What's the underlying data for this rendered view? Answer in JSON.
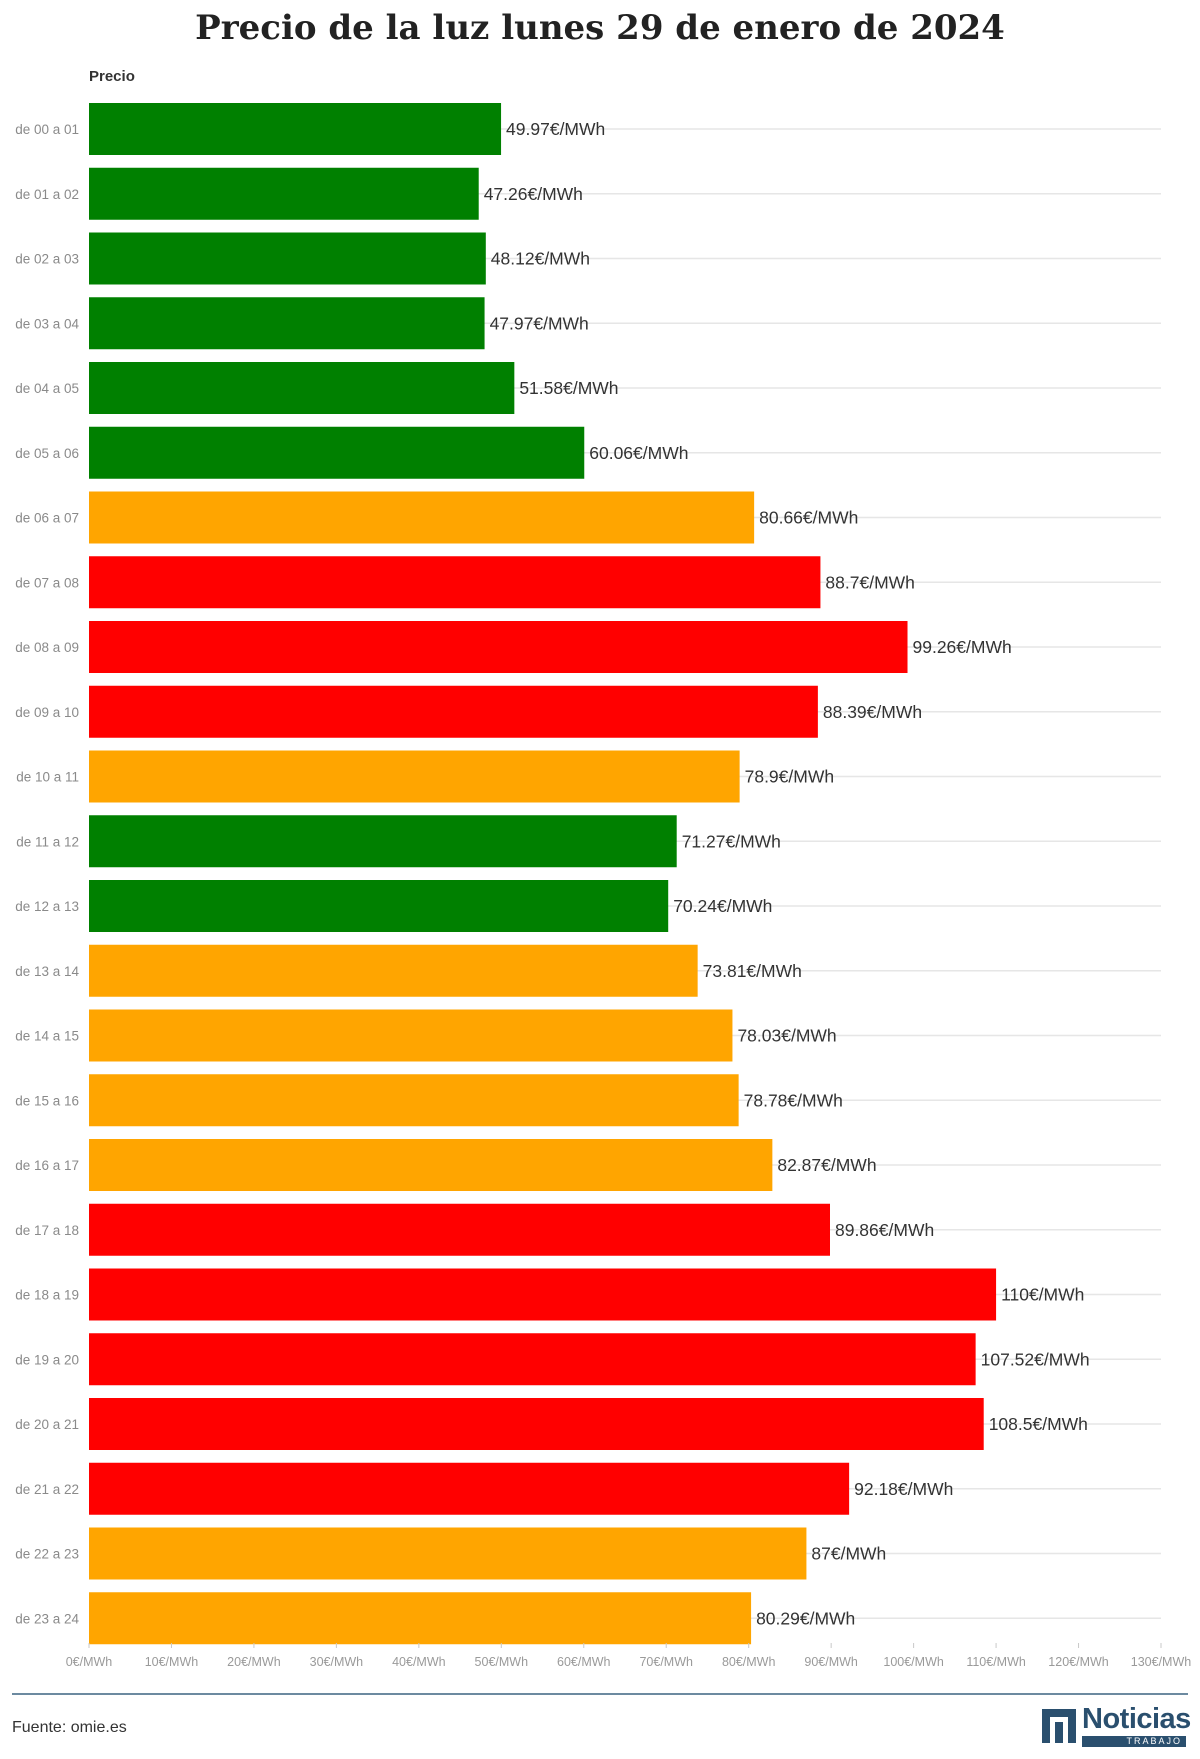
{
  "chart_data": {
    "type": "bar",
    "orientation": "horizontal",
    "title": "Precio de la luz lunes 29 de enero de 2024",
    "series_label": "Precio",
    "categories": [
      "de 00 a 01",
      "de 01 a 02",
      "de 02 a 03",
      "de 03 a 04",
      "de 04 a 05",
      "de 05 a 06",
      "de 06 a 07",
      "de 07 a 08",
      "de 08 a 09",
      "de 09 a 10",
      "de 10 a 11",
      "de 11 a 12",
      "de 12 a 13",
      "de 13 a 14",
      "de 14 a 15",
      "de 15 a 16",
      "de 16 a 17",
      "de 17 a 18",
      "de 18 a 19",
      "de 19 a 20",
      "de 20 a 21",
      "de 21 a 22",
      "de 22 a 23",
      "de 23 a 24"
    ],
    "values": [
      49.97,
      47.26,
      48.12,
      47.97,
      51.58,
      60.06,
      80.66,
      88.7,
      99.26,
      88.39,
      78.9,
      71.27,
      70.24,
      73.81,
      78.03,
      78.78,
      82.87,
      89.86,
      110,
      107.52,
      108.5,
      92.18,
      87,
      80.29
    ],
    "data_labels": [
      "49.97€/MWh",
      "47.26€/MWh",
      "48.12€/MWh",
      "47.97€/MWh",
      "51.58€/MWh",
      "60.06€/MWh",
      "80.66€/MWh",
      "88.7€/MWh",
      "99.26€/MWh",
      "88.39€/MWh",
      "78.9€/MWh",
      "71.27€/MWh",
      "70.24€/MWh",
      "73.81€/MWh",
      "78.03€/MWh",
      "78.78€/MWh",
      "82.87€/MWh",
      "89.86€/MWh",
      "110€/MWh",
      "107.52€/MWh",
      "108.5€/MWh",
      "92.18€/MWh",
      "87€/MWh",
      "80.29€/MWh"
    ],
    "bar_colors": [
      "green",
      "green",
      "green",
      "green",
      "green",
      "green",
      "orange",
      "red",
      "red",
      "red",
      "orange",
      "green",
      "green",
      "orange",
      "orange",
      "orange",
      "orange",
      "red",
      "red",
      "red",
      "red",
      "red",
      "orange",
      "orange"
    ],
    "palette": {
      "green": "#008000",
      "orange": "#ffa500",
      "red": "#ff0000"
    },
    "xlim": [
      0,
      130
    ],
    "xticks": [
      0,
      10,
      20,
      30,
      40,
      50,
      60,
      70,
      80,
      90,
      100,
      110,
      120,
      130
    ],
    "xtick_labels": [
      "0€/MWh",
      "10€/MWh",
      "20€/MWh",
      "30€/MWh",
      "40€/MWh",
      "50€/MWh",
      "60€/MWh",
      "70€/MWh",
      "80€/MWh",
      "90€/MWh",
      "100€/MWh",
      "110€/MWh",
      "120€/MWh",
      "130€/MWh"
    ],
    "grid": true
  },
  "footer": {
    "source": "Fuente: omie.es",
    "logo_text": "Noticias",
    "logo_subtext": "TRABAJO"
  }
}
